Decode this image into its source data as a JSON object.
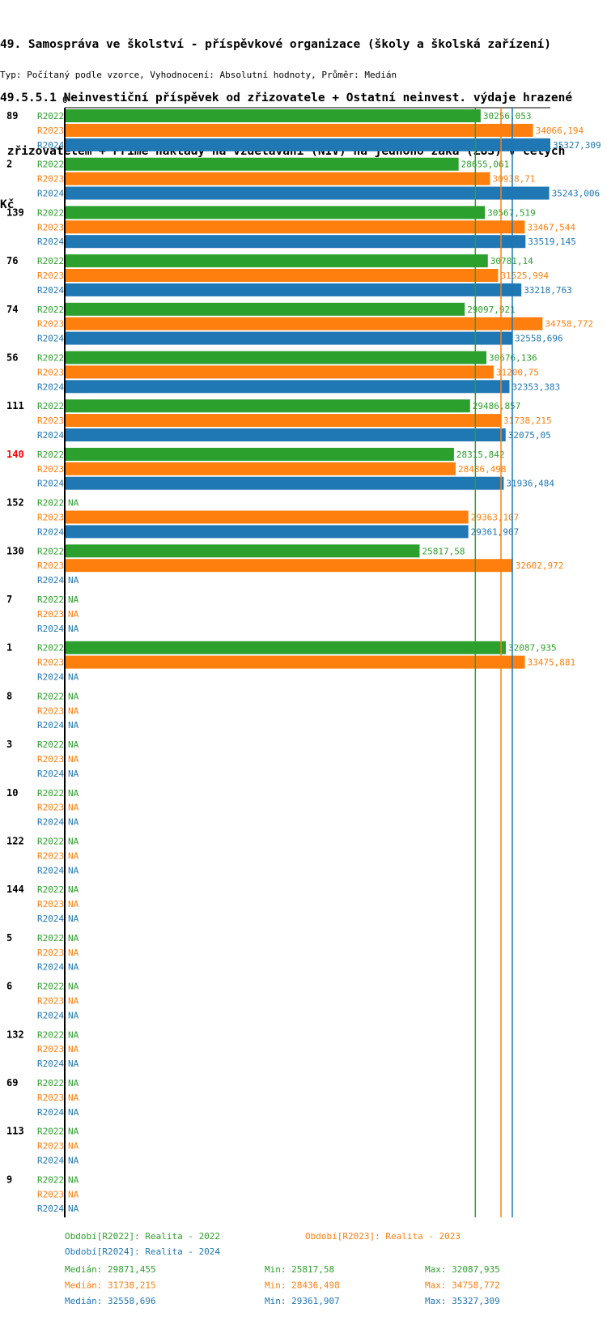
{
  "title_lines": [
    "49. Samospráva ve školství - příspěvkové organizace (školy a školská zařízení)",
    "49.5.5.1 Neinvestiční příspěvek od zřizovatele + Ostatní neinvest. výdaje hrazené",
    " zřizovatelem + Přímé náklady na vzdělávání (NIV) na jednoho žáka (ZUŠ) v celých",
    "Kč"
  ],
  "subtitle": "Typ: Počítaný podle vzorce, Vyhodnocení: Absolutní hodnoty, Průměr: Medián",
  "colors": {
    "R2022": "#2ca02c",
    "R2023": "#ff7f0e",
    "R2024": "#1f77b4",
    "highlight": "#ff0000"
  },
  "chart_data": {
    "type": "bar",
    "orientation": "horizontal",
    "title": "49.5.5.1 Neinvestiční příspěvek od zřizovatele + Ostatní neinvest. výdaje hrazené zřizovatelem + Přímé náklady na vzdělávání (NIV) na jednoho žáka (ZUŠ) v celých Kč",
    "axis_zero_label": "0",
    "xlim": [
      0,
      36200
    ],
    "na_label": "NA",
    "highlight_category": "140",
    "categories": [
      "89",
      "2",
      "139",
      "76",
      "74",
      "56",
      "111",
      "140",
      "152",
      "130",
      "7",
      "1",
      "8",
      "3",
      "10",
      "122",
      "144",
      "5",
      "6",
      "132",
      "69",
      "113",
      "9"
    ],
    "series": [
      {
        "name": "R2022",
        "values": [
          "30256,053",
          "28655,061",
          "30567,519",
          "30781,14",
          "29097,921",
          "30676,136",
          "29486,857",
          "28315,842",
          null,
          "25817,58",
          null,
          "32087,935",
          null,
          null,
          null,
          null,
          null,
          null,
          null,
          null,
          null,
          null,
          null
        ]
      },
      {
        "name": "R2023",
        "values": [
          "34066,194",
          "30938,71",
          "33467,544",
          "31525,994",
          "34758,772",
          "31200,75",
          "31738,215",
          "28436,498",
          "29363,107",
          "32602,972",
          null,
          "33475,881",
          null,
          null,
          null,
          null,
          null,
          null,
          null,
          null,
          null,
          null,
          null
        ]
      },
      {
        "name": "R2024",
        "values": [
          "35327,309",
          "35243,006",
          "33519,145",
          "33218,763",
          "32558,696",
          "32353,383",
          "32075,05",
          "31936,484",
          "29361,907",
          null,
          null,
          null,
          null,
          null,
          null,
          null,
          null,
          null,
          null,
          null,
          null,
          null,
          null
        ]
      }
    ],
    "medians": {
      "R2022": 29871.455,
      "R2023": 31738.215,
      "R2024": 32558.696
    },
    "legend": [
      {
        "series": "R2022",
        "text": "Období[R2022]: Realita - 2022"
      },
      {
        "series": "R2023",
        "text": "Období[R2023]: Realita - 2023"
      },
      {
        "series": "R2024",
        "text": "Období[R2024]: Realita - 2024"
      }
    ],
    "stats": [
      {
        "series": "R2022",
        "median": "Medián: 29871,455",
        "min": "Min: 25817,58",
        "max": "Max: 32087,935"
      },
      {
        "series": "R2023",
        "median": "Medián: 31738,215",
        "min": "Min: 28436,498",
        "max": "Max: 34758,772"
      },
      {
        "series": "R2024",
        "median": "Medián: 32558,696",
        "min": "Min: 29361,907",
        "max": "Max: 35327,309"
      }
    ]
  }
}
